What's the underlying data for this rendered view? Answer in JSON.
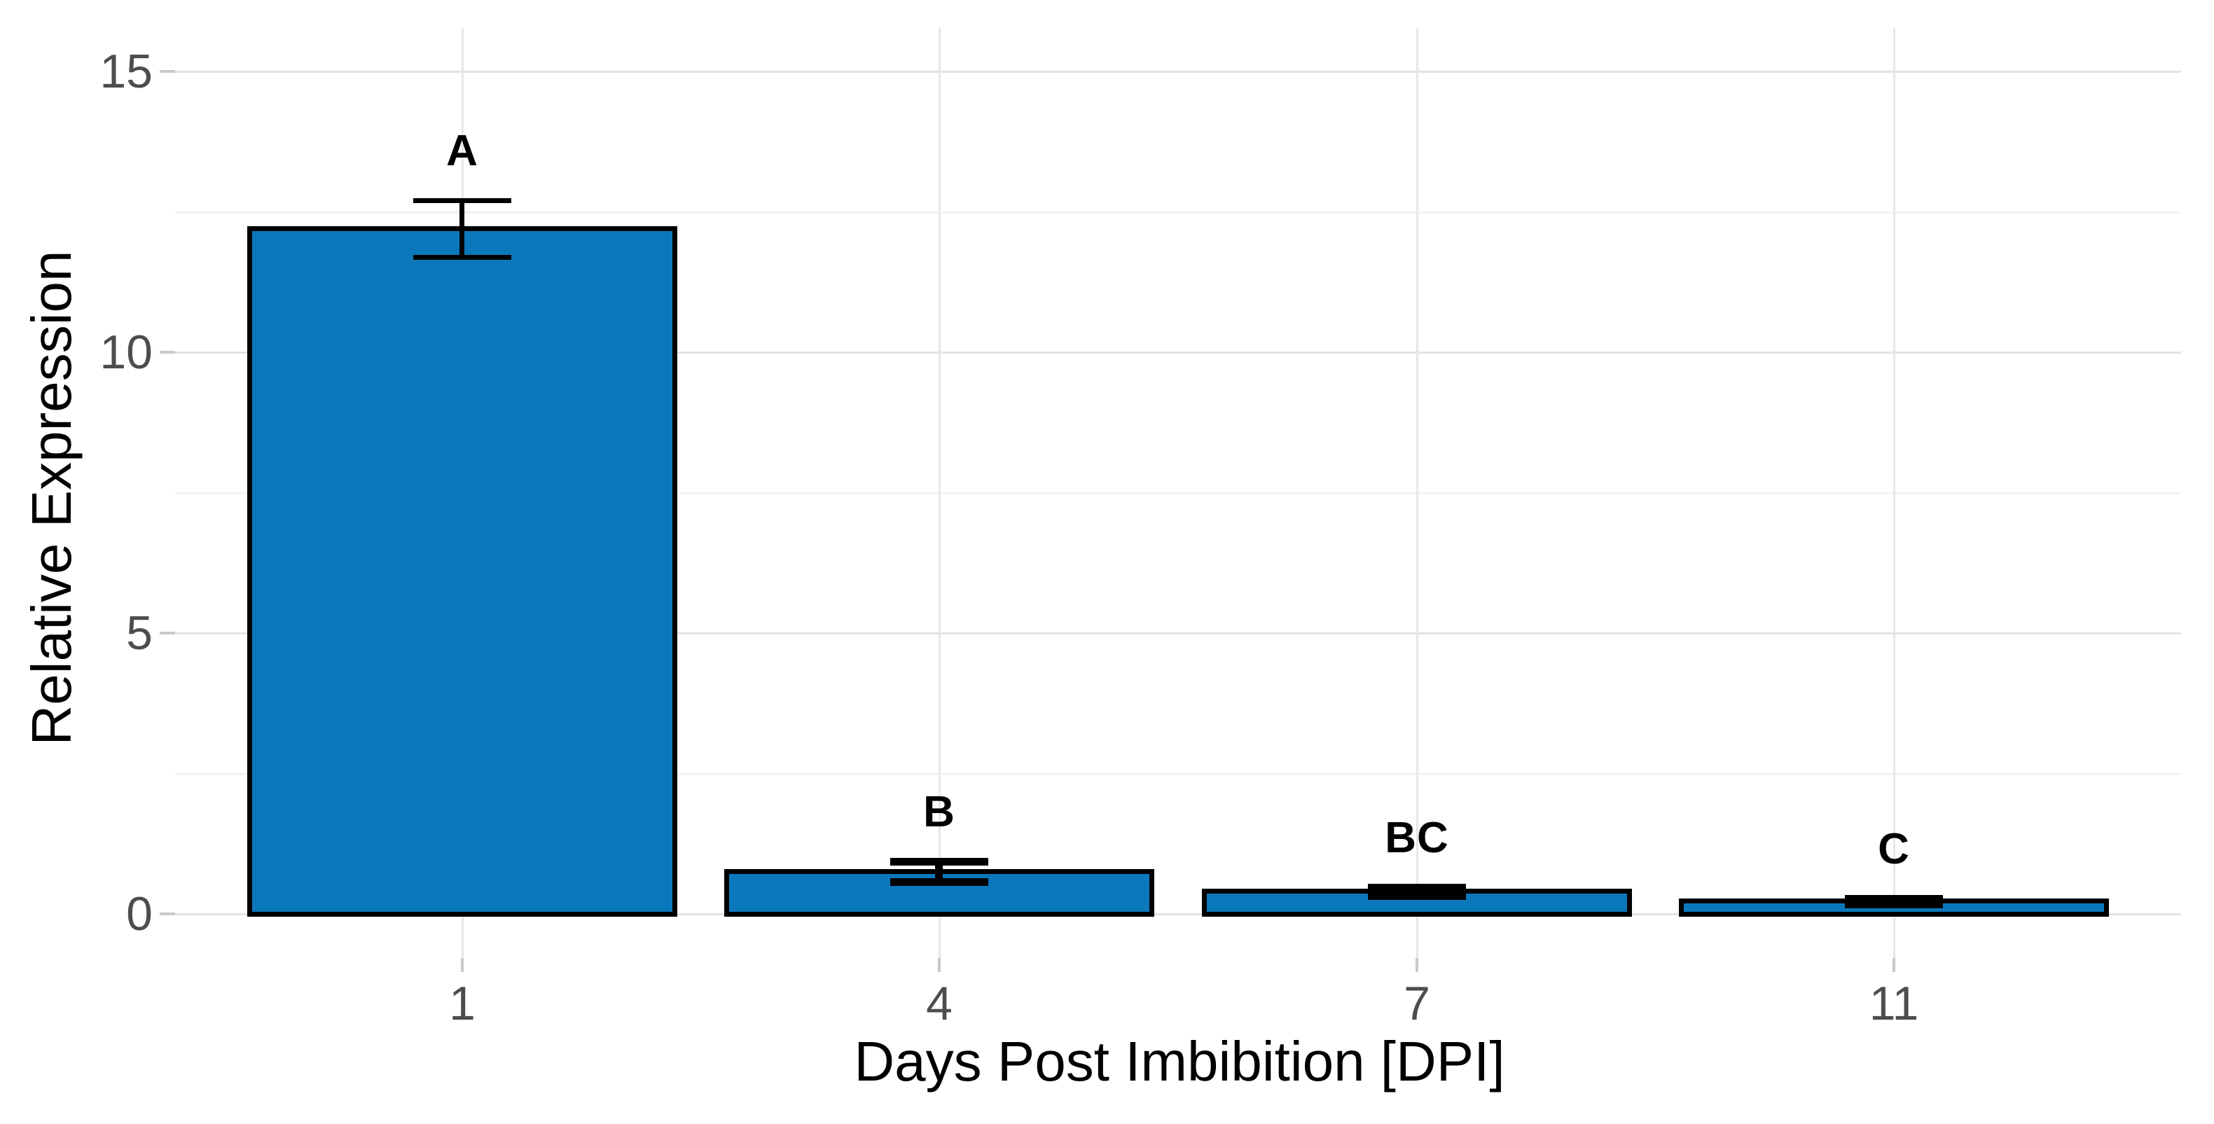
{
  "chart_data": {
    "type": "bar",
    "title": "",
    "xlabel": "Days Post Imbibition [DPI]",
    "ylabel": "Relative Expression",
    "categories": [
      "1",
      "4",
      "7",
      "11"
    ],
    "values": [
      12.2,
      0.75,
      0.4,
      0.22
    ],
    "errors": [
      0.5,
      0.18,
      0.07,
      0.05
    ],
    "sig_letters": [
      "A",
      "B",
      "BC",
      "C"
    ],
    "y_ticks": [
      0,
      5,
      10,
      15
    ],
    "y_tick_labels": [
      "0",
      "5",
      "10",
      "15"
    ],
    "y_minor_ticks": [
      2.5,
      7.5,
      12.5
    ],
    "ylim": [
      -0.8,
      16.6
    ],
    "grid": true,
    "legend": false,
    "colors": {
      "bar_fill": "#0b78bc",
      "bar_edge": "#000000",
      "error_bar": "#000000",
      "grid_major": "#e3e3e3",
      "grid_minor": "#f2f2f2",
      "axis_text": "#4d4d4d",
      "axis_title": "#000000",
      "background": "#ffffff"
    }
  }
}
